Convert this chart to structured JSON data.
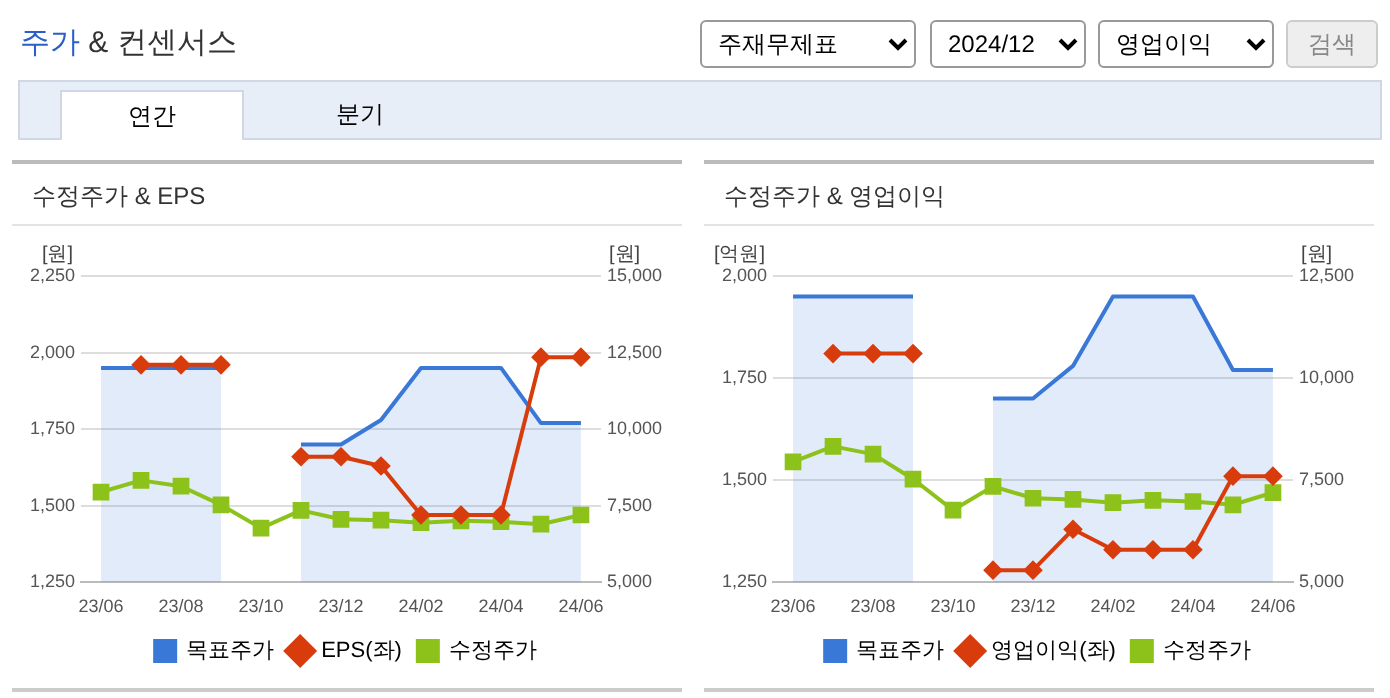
{
  "chart_data": [
    {
      "type": "other",
      "title": "주가 & 컨센서스",
      "annotations": [
        "주재무제표",
        "2024/12",
        "영업이익",
        "검색",
        "연간",
        "분기"
      ]
    },
    {
      "type": "line",
      "title": "수정주가 & EPS",
      "ylabel": "[원]",
      "y2label": "[원]",
      "categories": [
        "23/06",
        null,
        "23/08",
        null,
        "23/10",
        null,
        "23/12",
        null,
        "24/02",
        null,
        "24/04",
        null,
        "24/06"
      ],
      "series": [
        {
          "name": "목표주가",
          "type": "area",
          "axis": "y2",
          "color": "#3a78d8",
          "marker": "none",
          "values": [
            12000,
            12000,
            12000,
            12000,
            null,
            9500,
            9500,
            10300,
            12000,
            12000,
            12000,
            10200,
            10200
          ]
        },
        {
          "name": "EPS(좌)",
          "type": "line",
          "axis": "y",
          "color": "#d83c0c",
          "marker": "diamond",
          "values": [
            null,
            1960,
            1960,
            1960,
            null,
            1660,
            1660,
            1630,
            1470,
            1470,
            1470,
            1985,
            1985
          ]
        },
        {
          "name": "수정주가",
          "type": "line",
          "axis": "y2",
          "color": "#8cc21a",
          "marker": "square",
          "values": [
            7950,
            8330,
            8140,
            7530,
            6770,
            7350,
            7060,
            7030,
            6950,
            7010,
            6980,
            6900,
            7200
          ]
        }
      ],
      "ylim": [
        1250,
        2250
      ],
      "yticks": [
        {
          "value": 1250,
          "label": "1,250"
        },
        {
          "value": 1500,
          "label": "1,500"
        },
        {
          "value": 1750,
          "label": "1,750"
        },
        {
          "value": 2000,
          "label": "2,000"
        },
        {
          "value": 2250,
          "label": "2,250"
        }
      ],
      "y2lim": [
        5000,
        15000
      ],
      "y2ticks": [
        {
          "value": 5000,
          "label": "5,000"
        },
        {
          "value": 7500,
          "label": "7,500"
        },
        {
          "value": 10000,
          "label": "10,000"
        },
        {
          "value": 12500,
          "label": "12,500"
        },
        {
          "value": 15000,
          "label": "15,000"
        }
      ],
      "grid": "y",
      "legend": "bottom"
    },
    {
      "type": "line",
      "title": "수정주가 & 영업이익",
      "ylabel": "[억원]",
      "y2label": "[원]",
      "categories": [
        "23/06",
        null,
        "23/08",
        null,
        "23/10",
        null,
        "23/12",
        null,
        "24/02",
        null,
        "24/04",
        null,
        "24/06"
      ],
      "series": [
        {
          "name": "목표주가",
          "type": "area",
          "axis": "y2",
          "color": "#3a78d8",
          "marker": "none",
          "values": [
            12000,
            12000,
            12000,
            12000,
            null,
            9500,
            9500,
            10300,
            12000,
            12000,
            12000,
            10200,
            10200
          ]
        },
        {
          "name": "영업이익(좌)",
          "type": "line",
          "axis": "y",
          "color": "#d83c0c",
          "marker": "diamond",
          "values": [
            null,
            1810,
            1810,
            1810,
            null,
            1280,
            1280,
            1380,
            1330,
            1330,
            1330,
            1510,
            1510
          ]
        },
        {
          "name": "수정주가",
          "type": "line",
          "axis": "y2",
          "color": "#8cc21a",
          "marker": "square",
          "values": [
            7950,
            8330,
            8140,
            7530,
            6770,
            7350,
            7060,
            7030,
            6950,
            7010,
            6980,
            6900,
            7200
          ]
        }
      ],
      "ylim": [
        1250,
        2000
      ],
      "yticks": [
        {
          "value": 1250,
          "label": "1,250"
        },
        {
          "value": 1500,
          "label": "1,500"
        },
        {
          "value": 1750,
          "label": "1,750"
        },
        {
          "value": 2000,
          "label": "2,000"
        }
      ],
      "y2lim": [
        5000,
        12500
      ],
      "y2ticks": [
        {
          "value": 5000,
          "label": "5,000"
        },
        {
          "value": 7500,
          "label": "7,500"
        },
        {
          "value": 10000,
          "label": "10,000"
        },
        {
          "value": 12500,
          "label": "12,500"
        }
      ],
      "grid": "y",
      "legend": "bottom"
    }
  ]
}
